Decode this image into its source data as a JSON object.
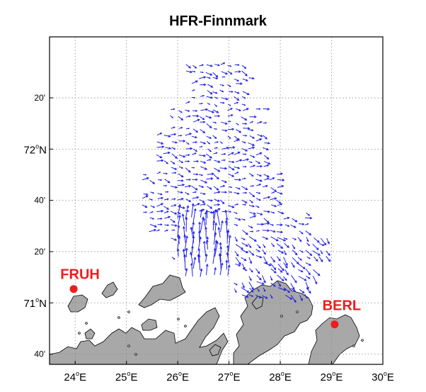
{
  "title": "HFR-Finnmark",
  "colors": {
    "land": "#a8a8a8",
    "coast": "#000000",
    "grid": "#8a8a8a",
    "vectors": "#1f1fe6",
    "station": "#ee1c1c"
  },
  "axes": {
    "lon_range": [
      23.5,
      30.0
    ],
    "lat_range": [
      70.6,
      72.73
    ],
    "x_ticks": [
      {
        "lon": 24,
        "deg": "24",
        "unit": "E"
      },
      {
        "lon": 25,
        "deg": "25",
        "unit": "E"
      },
      {
        "lon": 26,
        "deg": "26",
        "unit": "E"
      },
      {
        "lon": 27,
        "deg": "27",
        "unit": "E"
      },
      {
        "lon": 28,
        "deg": "28",
        "unit": "E"
      },
      {
        "lon": 29,
        "deg": "29",
        "unit": "E"
      },
      {
        "lon": 30,
        "deg": "30",
        "unit": "E"
      }
    ],
    "y_ticks": [
      {
        "lat": 70.6667,
        "text": "40'",
        "major": false
      },
      {
        "lat": 71.0,
        "deg": "71",
        "unit": "N",
        "major": true
      },
      {
        "lat": 71.3333,
        "text": "20'",
        "major": false
      },
      {
        "lat": 71.6667,
        "text": "40'",
        "major": false
      },
      {
        "lat": 72.0,
        "deg": "72",
        "unit": "N",
        "major": true
      },
      {
        "lat": 72.3333,
        "text": "20'",
        "major": false
      }
    ],
    "grid": true
  },
  "stations": [
    {
      "name": "FRUH",
      "lon": 23.97,
      "lat": 71.09
    },
    {
      "name": "BERL",
      "lon": 29.06,
      "lat": 70.86
    }
  ],
  "current_field": {
    "lon_range": [
      25.3,
      29.4
    ],
    "lat_range": [
      71.02,
      72.42
    ],
    "note_type": "surface current vectors"
  }
}
